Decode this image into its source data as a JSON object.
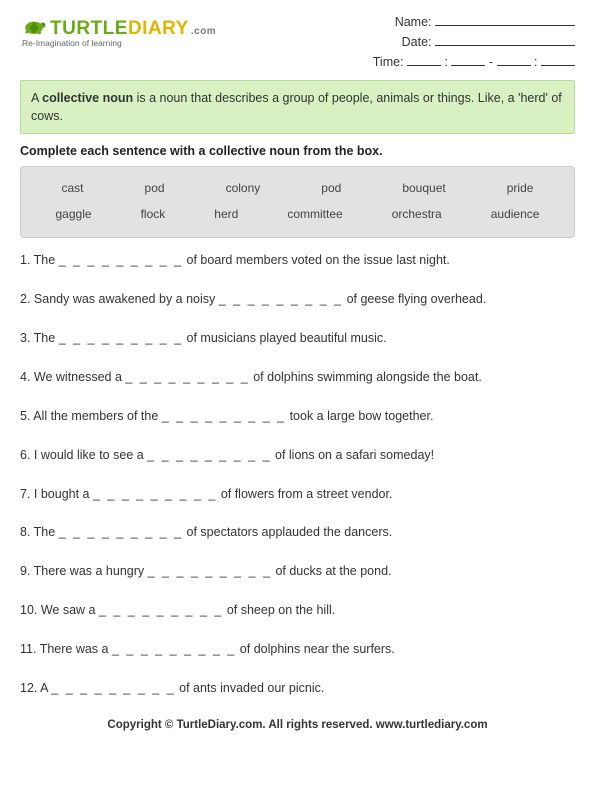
{
  "logo": {
    "word1": "TURTLE",
    "word2": "DIARY",
    "suffix": ".com",
    "tagline": "Re-Imagination of learning",
    "colors": {
      "turtle": "#6aa917",
      "diary": "#e2b300",
      "com": "#777777"
    }
  },
  "header_fields": {
    "name_label": "Name:",
    "date_label": "Date:",
    "time_label": "Time:"
  },
  "definition": {
    "prefix": "A ",
    "term": "collective noun",
    "rest": " is a noun that describes a group of people, animals or things. Like, a 'herd' of cows."
  },
  "instruction": "Complete each sentence with a collective noun from the box.",
  "word_box": {
    "row1": [
      "cast",
      "pod",
      "colony",
      "pod",
      "bouquet",
      "pride"
    ],
    "row2": [
      "gaggle",
      "flock",
      "herd",
      "committee",
      "orchestra",
      "audience"
    ]
  },
  "blank": "_ _ _ _ _ _ _ _ _",
  "questions": [
    {
      "n": "1.",
      "pre": "The ",
      "post": "  of board members voted on the issue last night."
    },
    {
      "n": "2.",
      "pre": "Sandy was awakened by a noisy  ",
      "post": "  of geese flying overhead."
    },
    {
      "n": "3.",
      "pre": "The  ",
      "post": "  of musicians played beautiful music."
    },
    {
      "n": "4.",
      "pre": "We witnessed a  ",
      "post": "  of dolphins swimming alongside the boat."
    },
    {
      "n": "5.",
      "pre": "All the members of the  ",
      "post": "  took a large bow together."
    },
    {
      "n": "6.",
      "pre": "I would like to see a  ",
      "post": "  of lions on a safari someday!"
    },
    {
      "n": "7.",
      "pre": "I bought a  ",
      "post": "  of flowers from a street vendor."
    },
    {
      "n": "8.",
      "pre": "The  ",
      "post": "  of spectators applauded the dancers."
    },
    {
      "n": "9.",
      "pre": "There was a hungry  ",
      "post": " of ducks at the pond."
    },
    {
      "n": "10.",
      "pre": "We saw a  ",
      "post": " of sheep on the hill."
    },
    {
      "n": "11.",
      "pre": "There was a  ",
      "post": " of dolphins near the surfers."
    },
    {
      "n": "12.",
      "pre": "A ",
      "post": "  of ants invaded our picnic."
    }
  ],
  "footer": "Copyright © TurtleDiary.com. All rights reserved.   www.turtlediary.com",
  "styles": {
    "page_bg": "#ffffff",
    "def_box_bg": "#d9f0c2",
    "def_box_border": "#b6dd96",
    "word_box_bg": "#e2e2e2",
    "word_box_border": "#cbcbcb",
    "text_color": "#333333",
    "body_fontsize": 12,
    "instruction_fontsize": 12.5
  }
}
